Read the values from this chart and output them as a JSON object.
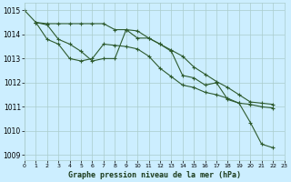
{
  "title": "Graphe pression niveau de la mer (hPa)",
  "bg_color": "#cceeff",
  "grid_color": "#aacccc",
  "line_color": "#2d5a2d",
  "xlim": [
    0,
    23
  ],
  "ylim": [
    1008.8,
    1015.3
  ],
  "yticks": [
    1009,
    1010,
    1011,
    1012,
    1013,
    1014,
    1015
  ],
  "xticks": [
    0,
    1,
    2,
    3,
    4,
    5,
    6,
    7,
    8,
    9,
    10,
    11,
    12,
    13,
    14,
    15,
    16,
    17,
    18,
    19,
    20,
    21,
    22,
    23
  ],
  "series": [
    {
      "x": [
        0,
        1,
        2,
        3,
        4,
        5,
        6,
        7,
        8,
        9,
        10,
        11,
        12,
        13,
        14,
        15,
        16,
        17,
        18,
        19,
        20,
        21,
        22
      ],
      "y": [
        1015.0,
        1014.5,
        1014.4,
        1013.8,
        1013.6,
        1013.3,
        1012.9,
        1013.0,
        1013.0,
        1014.2,
        1013.85,
        1013.85,
        1013.6,
        1013.3,
        1012.3,
        1012.2,
        1011.9,
        1012.0,
        1011.3,
        1011.15,
        1010.35,
        1009.45,
        1009.3
      ]
    },
    {
      "x": [
        1,
        2,
        3,
        4,
        5,
        6,
        7,
        8,
        9,
        10,
        11,
        12,
        13,
        14,
        15,
        16,
        17,
        18,
        19,
        20,
        21,
        22
      ],
      "y": [
        1014.5,
        1014.45,
        1014.45,
        1014.45,
        1014.45,
        1014.45,
        1014.45,
        1014.2,
        1014.2,
        1014.15,
        1013.85,
        1013.6,
        1013.35,
        1013.1,
        1012.65,
        1012.35,
        1012.05,
        1011.8,
        1011.5,
        1011.2,
        1011.15,
        1011.1
      ]
    },
    {
      "x": [
        1,
        2,
        3,
        4,
        5,
        6,
        7,
        8,
        9,
        10,
        11,
        12,
        13,
        14,
        15,
        16,
        17,
        18,
        19,
        20,
        21,
        22
      ],
      "y": [
        1014.5,
        1013.8,
        1013.6,
        1013.0,
        1012.9,
        1013.0,
        1013.6,
        1013.55,
        1013.5,
        1013.4,
        1013.1,
        1012.6,
        1012.25,
        1011.9,
        1011.8,
        1011.6,
        1011.5,
        1011.35,
        1011.15,
        1011.1,
        1011.0,
        1010.95
      ]
    }
  ]
}
